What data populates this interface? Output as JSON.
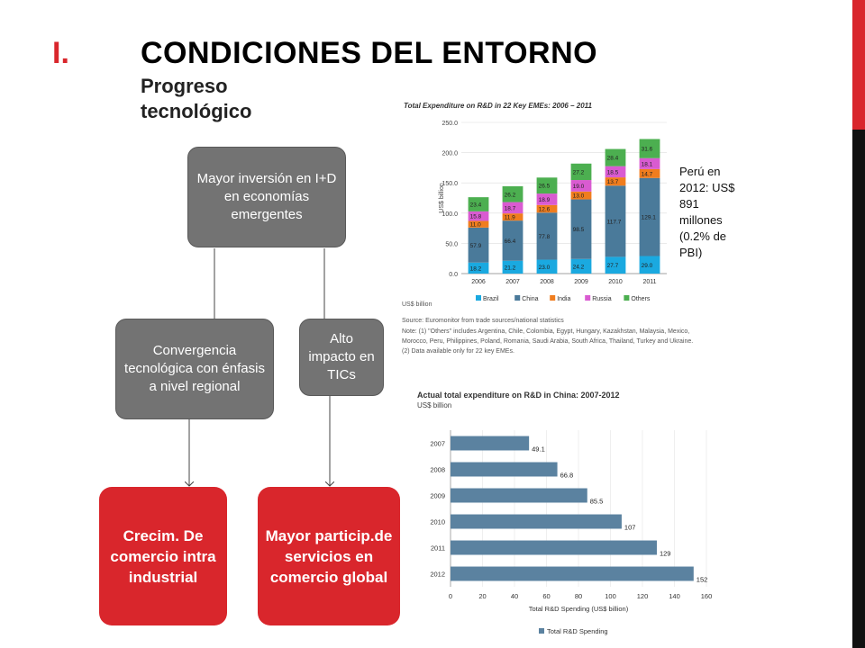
{
  "slide": {
    "title_number": "I.",
    "title": "CONDICIONES DEL ENTORNO",
    "subtitle": "Progreso tecnológico"
  },
  "diagram": {
    "top_box": "Mayor inversión en I+D en economías emergentes",
    "mid_left_box": "Convergencia tecnológica con énfasis a nivel regional",
    "mid_right_box": "Alto impacto en TICs",
    "bottom_left_box": "Crecim. De comercio intra industrial",
    "bottom_right_box": "Mayor particip.de servicios en comercio global"
  },
  "note": "Perú en 2012: US$ 891 millones (0.2% de PBI)",
  "sources": {
    "chart1_unit_note": "US$ billion",
    "source": "Source: Euromonitor from trade sources/national statistics",
    "note1": "Note: (1) \"Others\" includes Argentina, Chile, Colombia, Egypt, Hungary, Kazakhstan, Malaysia, Mexico,",
    "note2": "Morocco, Peru, Philippines, Poland, Romania, Saudi Arabia, South Africa, Thailand, Turkey and Ukraine.",
    "note3": "(2) Data available only for 22 key EMEs."
  },
  "colors": {
    "brazil": "#1aa9e0",
    "china": "#4a7a9a",
    "india": "#f07d1e",
    "russia": "#d95bd1",
    "others": "#4caf50",
    "bar2": "#5b82a0",
    "accent": "#d9262c"
  },
  "chart_data": [
    {
      "type": "bar",
      "stacked": true,
      "title": "Total Expenditure on R&D in 22 Key EMEs: 2006 – 2011",
      "ylabel": "US$ billion",
      "ylim": [
        0,
        250
      ],
      "yticks": [
        "0.0",
        "50.0",
        "100.0",
        "150.0",
        "200.0",
        "250.0"
      ],
      "categories": [
        "2006",
        "2007",
        "2008",
        "2009",
        "2010",
        "2011"
      ],
      "series": [
        {
          "name": "Brazil",
          "values": [
            18.2,
            21.2,
            23.0,
            24.2,
            27.7,
            29.0
          ]
        },
        {
          "name": "China",
          "values": [
            57.9,
            66.4,
            77.8,
            98.5,
            117.7,
            129.1
          ]
        },
        {
          "name": "India",
          "values": [
            11.0,
            11.9,
            12.6,
            13.0,
            13.7,
            14.7
          ]
        },
        {
          "name": "Russia",
          "values": [
            15.8,
            18.7,
            18.9,
            19.0,
            18.5,
            18.1
          ]
        },
        {
          "name": "Others",
          "values": [
            23.4,
            26.2,
            26.5,
            27.2,
            28.4,
            31.6
          ]
        }
      ],
      "legend_position": "bottom"
    },
    {
      "type": "bar",
      "orientation": "horizontal",
      "title": "Actual total expenditure on R&D in China: 2007-2012",
      "unit_label": "US$ billion",
      "xlabel": "Total R&D Spending (US$ billion)",
      "xlim": [
        0,
        160
      ],
      "xticks": [
        "0",
        "20",
        "40",
        "60",
        "80",
        "100",
        "120",
        "140",
        "160"
      ],
      "categories": [
        "2007",
        "2008",
        "2009",
        "2010",
        "2011",
        "2012"
      ],
      "values": [
        49.1,
        66.8,
        85.5,
        107,
        129,
        152
      ],
      "value_labels": [
        "49.1",
        "66.8",
        "85.5",
        "107",
        "129",
        "152"
      ],
      "legend": "Total R&D Spending"
    }
  ]
}
